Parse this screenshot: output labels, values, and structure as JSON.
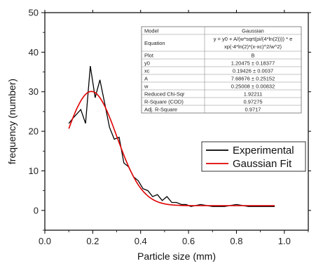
{
  "chart_data": {
    "type": "line",
    "xlabel": "Particle size (mm)",
    "ylabel": "frequency (number)",
    "xlim": [
      0.0,
      1.1
    ],
    "ylim": [
      -5,
      50
    ],
    "xticks": [
      "0.0",
      "0.2",
      "0.4",
      "0.6",
      "0.8",
      "1.0"
    ],
    "xtick_values": [
      0.0,
      0.2,
      0.4,
      0.6,
      0.8,
      1.0
    ],
    "yticks": [
      "0",
      "10",
      "20",
      "30",
      "40",
      "50"
    ],
    "ytick_values": [
      0,
      10,
      20,
      30,
      40,
      50
    ],
    "legend_position": "right-middle",
    "series": [
      {
        "name": "Experimental",
        "color": "#000000",
        "x": [
          0.1,
          0.12,
          0.15,
          0.17,
          0.19,
          0.21,
          0.23,
          0.25,
          0.27,
          0.29,
          0.31,
          0.33,
          0.35,
          0.37,
          0.39,
          0.41,
          0.43,
          0.45,
          0.47,
          0.49,
          0.51,
          0.53,
          0.55,
          0.57,
          0.59,
          0.61,
          0.65,
          0.7,
          0.75,
          0.8,
          0.85,
          0.9,
          0.96
        ],
        "y": [
          22.0,
          23.5,
          25.5,
          22.0,
          36.5,
          28.5,
          33.0,
          27.0,
          21.0,
          18.0,
          18.5,
          12.0,
          11.0,
          8.5,
          7.5,
          5.5,
          5.0,
          3.5,
          4.0,
          2.5,
          3.5,
          2.0,
          2.0,
          1.5,
          1.5,
          1.0,
          1.5,
          1.0,
          1.0,
          1.5,
          1.0,
          1.0,
          1.0
        ]
      },
      {
        "name": "Gaussian Fit",
        "color": "#e00000",
        "model": {
          "y0": 1.20475,
          "xc": 0.19426,
          "A": 7.68676,
          "w": 0.25008
        },
        "x_range": [
          0.1,
          0.96
        ]
      }
    ],
    "fit_table": {
      "rows": [
        [
          "Model",
          "Gaussian"
        ],
        [
          "Equation",
          "y = y0 + A/(w*sqrt(pi/(4*ln(2)))) * e|xp(-4*ln(2)*(x-xc)^2/w^2)"
        ],
        [
          "Plot",
          "B"
        ],
        [
          "y0",
          "1.20475 ± 0.18377"
        ],
        [
          "xc",
          "0.19426 ± 0.0037"
        ],
        [
          "A",
          "7.68676 ± 0.25152"
        ],
        [
          "w",
          "0.25008 ± 0.00832"
        ],
        [
          "Reduced Chi-Sqr",
          "1.92211"
        ],
        [
          "R-Square (COD)",
          "0.97275"
        ],
        [
          "Adj. R-Square",
          "0.9717"
        ]
      ]
    }
  }
}
